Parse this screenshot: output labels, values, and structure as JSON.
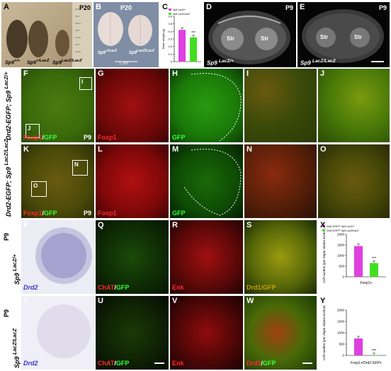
{
  "figure": {
    "top_row": {
      "A": {
        "label": "A",
        "age": "P20",
        "genotypes": [
          "Sp9+/+",
          "Sp9+/LacZ",
          "Sp9LacZ/LacZ"
        ]
      },
      "B": {
        "label": "B",
        "age": "P20",
        "genotypes": [
          "Sp9+/LacZ",
          "Sp9LacZ/LacZ"
        ],
        "scale": "1 cm"
      },
      "C": {
        "label": "C",
        "ylabel": "Brain weight (g)",
        "legend": [
          "Sp9+/LacZ",
          "Sp9LacZ/LacZ"
        ],
        "significance": "***"
      },
      "D": {
        "label": "D",
        "age": "P9",
        "region_left": "Str",
        "region_right": "Str",
        "genotype": "Sp9 LacZ/+"
      },
      "E": {
        "label": "E",
        "age": "P9",
        "region_left": "Str",
        "region_right": "Str",
        "genotype": "Sp9 LacZ/LacZ"
      }
    },
    "row_labels": {
      "row2": "Drd2-EGFP; Sp9 LacZ/+",
      "row3": "Drd2-EGFP; Sp9 LacZ/LacZ",
      "row4_age": "P9",
      "row4": "Sp9 LacZ/+",
      "row5_age": "P9",
      "row5": "Sp9 LacZ/LacZ"
    },
    "row2": {
      "F": {
        "label": "F",
        "stain1": "Foxp1",
        "sep": "/",
        "stain2": "GFP",
        "age": "P9",
        "box1": "I",
        "box2": "J"
      },
      "G": {
        "label": "G",
        "stain": "Foxp1"
      },
      "H": {
        "label": "H",
        "stain": "GFP"
      },
      "I": {
        "label": "I"
      },
      "J": {
        "label": "J"
      }
    },
    "row3": {
      "K": {
        "label": "K",
        "stain1": "Foxp1",
        "sep": "/",
        "stain2": "GFP",
        "age": "P9",
        "box1": "N",
        "box2": "O"
      },
      "L": {
        "label": "L",
        "stain": "Foxp1"
      },
      "M": {
        "label": "M",
        "stain": "GFP"
      },
      "N": {
        "label": "N"
      },
      "O": {
        "label": "O"
      }
    },
    "row4": {
      "P": {
        "label": "P",
        "stain": "Drd2"
      },
      "Q": {
        "label": "Q",
        "stain1": "ChAT",
        "sep": "/",
        "stain2": "GFP"
      },
      "R": {
        "label": "R",
        "stain": "Enk"
      },
      "S": {
        "label": "S",
        "stain1": "Drd1",
        "sep": "/",
        "stain2": "GFP"
      }
    },
    "row5": {
      "T": {
        "label": "T",
        "stain": "Drd2"
      },
      "U": {
        "label": "U",
        "stain1": "ChAT",
        "sep": "/",
        "stain2": "GFP"
      },
      "V": {
        "label": "V",
        "stain": "Enk"
      },
      "W": {
        "label": "W",
        "stain1": "Drd1",
        "sep": "/",
        "stain2": "GFP"
      }
    }
  },
  "chart_data": [
    {
      "panel": "C",
      "type": "bar",
      "ylabel": "Brain weight (g)",
      "ylim": [
        0,
        0.6
      ],
      "yticks": [
        "0",
        "0.1",
        "0.2",
        "0.3",
        "0.4",
        "0.5",
        "0.6"
      ],
      "series": [
        {
          "name": "Sp9 LacZ/+",
          "values": [
            0.42
          ],
          "color": "#e040e0"
        },
        {
          "name": "Sp9 LacZ/LacZ",
          "values": [
            0.32
          ],
          "color": "#44dd22"
        }
      ],
      "significance": "***"
    },
    {
      "panel": "X",
      "type": "bar",
      "ylabel": "Cell number (per 20μm striatal section)",
      "categories": [
        "Foxp1+"
      ],
      "ylim": [
        0,
        2000
      ],
      "yticks": [
        "0",
        "500",
        "1000",
        "1500",
        "2000"
      ],
      "series": [
        {
          "name": "Drd2-EGFP; Sp9 LacZ/+",
          "values": [
            1450
          ],
          "color": "#e040e0"
        },
        {
          "name": "Drd2-EGFP; Sp9 LacZ/LacZ",
          "values": [
            650
          ],
          "color": "#44dd22"
        }
      ],
      "significance": "***"
    },
    {
      "panel": "Y",
      "type": "bar",
      "ylabel": "Cell number (per 20μm striatal section)",
      "categories": [
        "Foxp1+/Drd2-GFP+"
      ],
      "ylim": [
        0,
        2000
      ],
      "yticks": [
        "0",
        "500",
        "1000",
        "1500",
        "2000"
      ],
      "series": [
        {
          "name": "Drd2-EGFP; Sp9 LacZ/+",
          "values": [
            750
          ],
          "color": "#e040e0"
        },
        {
          "name": "Drd2-EGFP; Sp9 LacZ/LacZ",
          "values": [
            5
          ],
          "color": "#44dd22"
        }
      ],
      "significance": "***"
    }
  ]
}
